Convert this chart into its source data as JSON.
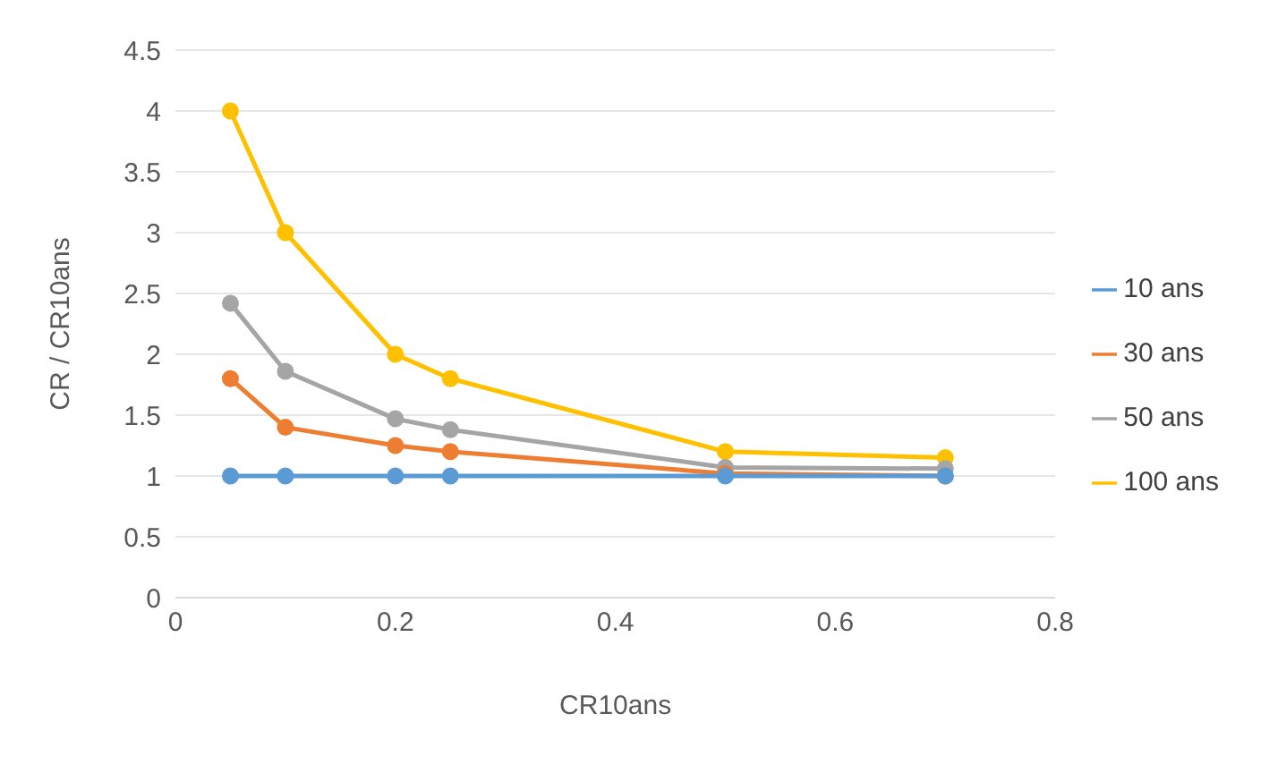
{
  "chart_data": {
    "type": "line",
    "xlabel": "CR10ans",
    "ylabel": "CR / CR10ans",
    "x": [
      0.05,
      0.1,
      0.2,
      0.25,
      0.5,
      0.7
    ],
    "series": [
      {
        "name": "10 ans",
        "color": "#5b9bd5",
        "values": [
          1,
          1,
          1,
          1,
          1,
          1
        ]
      },
      {
        "name": "30 ans",
        "color": "#ed7d31",
        "values": [
          1.8,
          1.4,
          1.25,
          1.2,
          1.02,
          1.0
        ]
      },
      {
        "name": "50 ans",
        "color": "#a5a5a5",
        "values": [
          2.42,
          1.86,
          1.47,
          1.38,
          1.07,
          1.06
        ]
      },
      {
        "name": "100 ans",
        "color": "#ffc000",
        "values": [
          4,
          3,
          2,
          1.8,
          1.2,
          1.15
        ]
      }
    ],
    "xlim": [
      0,
      0.8
    ],
    "xticks": [
      0,
      0.2,
      0.4,
      0.6,
      0.8
    ],
    "ylim": [
      0,
      4.5
    ],
    "yticks": [
      0,
      0.5,
      1,
      1.5,
      2,
      2.5,
      3,
      3.5,
      4,
      4.5
    ],
    "grid": "y",
    "legend": "right",
    "marker": "circle",
    "line_style": "solid"
  }
}
